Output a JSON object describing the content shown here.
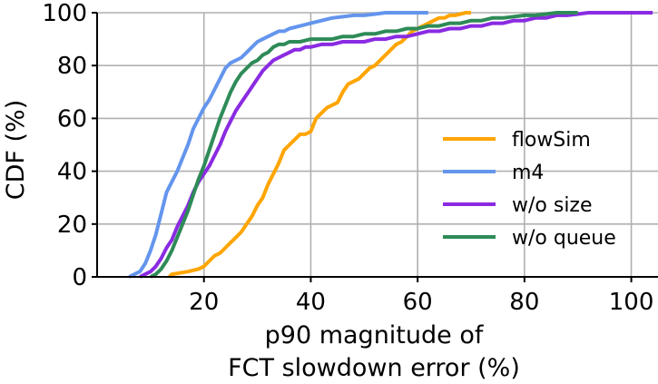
{
  "chart_data": {
    "type": "line",
    "title": "",
    "xlabel_lines": [
      "p90 magnitude of",
      "FCT slowdown error (%)"
    ],
    "ylabel": "CDF (%)",
    "xlim": [
      0,
      105
    ],
    "ylim": [
      0,
      100
    ],
    "xticks": [
      20,
      40,
      60,
      80,
      100
    ],
    "yticks": [
      0,
      20,
      40,
      60,
      80,
      100
    ],
    "grid": true,
    "legend_position": "center-right",
    "series": [
      {
        "name": "flowSim",
        "color": "#FFA500",
        "points": [
          [
            13.5,
            0
          ],
          [
            14,
            1
          ],
          [
            17,
            2
          ],
          [
            19,
            3
          ],
          [
            20,
            4
          ],
          [
            21,
            6
          ],
          [
            22,
            8
          ],
          [
            23,
            9
          ],
          [
            24,
            11
          ],
          [
            25,
            13
          ],
          [
            26,
            15
          ],
          [
            27,
            17
          ],
          [
            28,
            20
          ],
          [
            29,
            23
          ],
          [
            30,
            27
          ],
          [
            31,
            30
          ],
          [
            32,
            35
          ],
          [
            33,
            39
          ],
          [
            34,
            43
          ],
          [
            35,
            48
          ],
          [
            36,
            50
          ],
          [
            37,
            52
          ],
          [
            38,
            54
          ],
          [
            39,
            54
          ],
          [
            40,
            55
          ],
          [
            41,
            60
          ],
          [
            42,
            62
          ],
          [
            43,
            64
          ],
          [
            44,
            65
          ],
          [
            45,
            66
          ],
          [
            46,
            70
          ],
          [
            47,
            73
          ],
          [
            48,
            74
          ],
          [
            49,
            75
          ],
          [
            50,
            77
          ],
          [
            51,
            79
          ],
          [
            52,
            80
          ],
          [
            53,
            82
          ],
          [
            54,
            84
          ],
          [
            55,
            86
          ],
          [
            56,
            88
          ],
          [
            57,
            89
          ],
          [
            58,
            91
          ],
          [
            59,
            93
          ],
          [
            60,
            94
          ],
          [
            61,
            95
          ],
          [
            62,
            96
          ],
          [
            63,
            97
          ],
          [
            64,
            98
          ],
          [
            65,
            98
          ],
          [
            66,
            99
          ],
          [
            67,
            99
          ],
          [
            68,
            99.5
          ],
          [
            69,
            100
          ],
          [
            70,
            100
          ]
        ]
      },
      {
        "name": "m4",
        "color": "#6495ED",
        "points": [
          [
            6,
            0
          ],
          [
            7,
            1
          ],
          [
            8,
            2
          ],
          [
            9,
            5
          ],
          [
            10,
            10
          ],
          [
            11,
            16
          ],
          [
            12,
            24
          ],
          [
            13,
            32
          ],
          [
            14,
            36
          ],
          [
            15,
            40
          ],
          [
            16,
            45
          ],
          [
            17,
            50
          ],
          [
            18,
            56
          ],
          [
            19,
            60
          ],
          [
            20,
            64
          ],
          [
            21,
            67
          ],
          [
            22,
            71
          ],
          [
            23,
            75
          ],
          [
            24,
            79
          ],
          [
            25,
            81
          ],
          [
            26,
            82
          ],
          [
            27,
            83
          ],
          [
            28,
            85
          ],
          [
            29,
            87
          ],
          [
            30,
            89
          ],
          [
            31,
            90
          ],
          [
            32,
            91
          ],
          [
            33,
            92
          ],
          [
            34,
            93
          ],
          [
            35,
            93
          ],
          [
            36,
            94
          ],
          [
            38,
            95
          ],
          [
            40,
            96
          ],
          [
            42,
            97
          ],
          [
            44,
            98
          ],
          [
            46,
            98.5
          ],
          [
            48,
            99
          ],
          [
            50,
            99
          ],
          [
            52,
            99.5
          ],
          [
            54,
            100
          ],
          [
            56,
            100
          ],
          [
            58,
            100
          ],
          [
            60,
            100
          ],
          [
            62,
            100
          ]
        ]
      },
      {
        "name": "w/o size",
        "color": "#8A2BE2",
        "points": [
          [
            8,
            0
          ],
          [
            9,
            1
          ],
          [
            10,
            2
          ],
          [
            11,
            4
          ],
          [
            12,
            7
          ],
          [
            13,
            11
          ],
          [
            14,
            14
          ],
          [
            15,
            19
          ],
          [
            16,
            23
          ],
          [
            17,
            27
          ],
          [
            18,
            32
          ],
          [
            19,
            36
          ],
          [
            20,
            39
          ],
          [
            21,
            42
          ],
          [
            22,
            46
          ],
          [
            23,
            50
          ],
          [
            24,
            55
          ],
          [
            25,
            59
          ],
          [
            26,
            63
          ],
          [
            27,
            66
          ],
          [
            28,
            69
          ],
          [
            29,
            72
          ],
          [
            30,
            75
          ],
          [
            31,
            78
          ],
          [
            32,
            80
          ],
          [
            33,
            82
          ],
          [
            34,
            83
          ],
          [
            35,
            84
          ],
          [
            36,
            85
          ],
          [
            37,
            86
          ],
          [
            38,
            86
          ],
          [
            39,
            87
          ],
          [
            40,
            87
          ],
          [
            42,
            88
          ],
          [
            44,
            88
          ],
          [
            46,
            89
          ],
          [
            48,
            89
          ],
          [
            50,
            89
          ],
          [
            52,
            90
          ],
          [
            54,
            90
          ],
          [
            56,
            91
          ],
          [
            58,
            91
          ],
          [
            60,
            92
          ],
          [
            62,
            93
          ],
          [
            64,
            93
          ],
          [
            66,
            94
          ],
          [
            68,
            94
          ],
          [
            70,
            95
          ],
          [
            72,
            95
          ],
          [
            74,
            96
          ],
          [
            76,
            96
          ],
          [
            78,
            97
          ],
          [
            80,
            97
          ],
          [
            82,
            98
          ],
          [
            84,
            98
          ],
          [
            86,
            99
          ],
          [
            88,
            99
          ],
          [
            90,
            99.5
          ],
          [
            92,
            100
          ],
          [
            100,
            100
          ],
          [
            104,
            100
          ]
        ]
      },
      {
        "name": "w/o queue",
        "color": "#2E8B57",
        "points": [
          [
            10,
            0
          ],
          [
            11,
            1
          ],
          [
            12,
            3
          ],
          [
            13,
            6
          ],
          [
            14,
            10
          ],
          [
            15,
            15
          ],
          [
            16,
            20
          ],
          [
            17,
            25
          ],
          [
            18,
            31
          ],
          [
            19,
            37
          ],
          [
            20,
            42
          ],
          [
            21,
            48
          ],
          [
            22,
            54
          ],
          [
            23,
            60
          ],
          [
            24,
            65
          ],
          [
            25,
            70
          ],
          [
            26,
            74
          ],
          [
            27,
            77
          ],
          [
            28,
            79
          ],
          [
            29,
            81
          ],
          [
            30,
            82
          ],
          [
            31,
            84
          ],
          [
            32,
            85
          ],
          [
            33,
            87
          ],
          [
            34,
            88
          ],
          [
            35,
            88
          ],
          [
            36,
            89
          ],
          [
            38,
            89
          ],
          [
            40,
            90
          ],
          [
            42,
            90
          ],
          [
            44,
            90
          ],
          [
            46,
            91
          ],
          [
            48,
            91
          ],
          [
            50,
            92
          ],
          [
            52,
            92
          ],
          [
            54,
            93
          ],
          [
            56,
            93
          ],
          [
            58,
            94
          ],
          [
            60,
            94
          ],
          [
            62,
            95
          ],
          [
            64,
            95
          ],
          [
            66,
            96
          ],
          [
            68,
            96
          ],
          [
            70,
            97
          ],
          [
            72,
            97
          ],
          [
            74,
            98
          ],
          [
            76,
            98
          ],
          [
            78,
            98.5
          ],
          [
            80,
            99
          ],
          [
            82,
            99
          ],
          [
            84,
            99.5
          ],
          [
            86,
            100
          ],
          [
            90,
            100
          ]
        ]
      }
    ]
  }
}
